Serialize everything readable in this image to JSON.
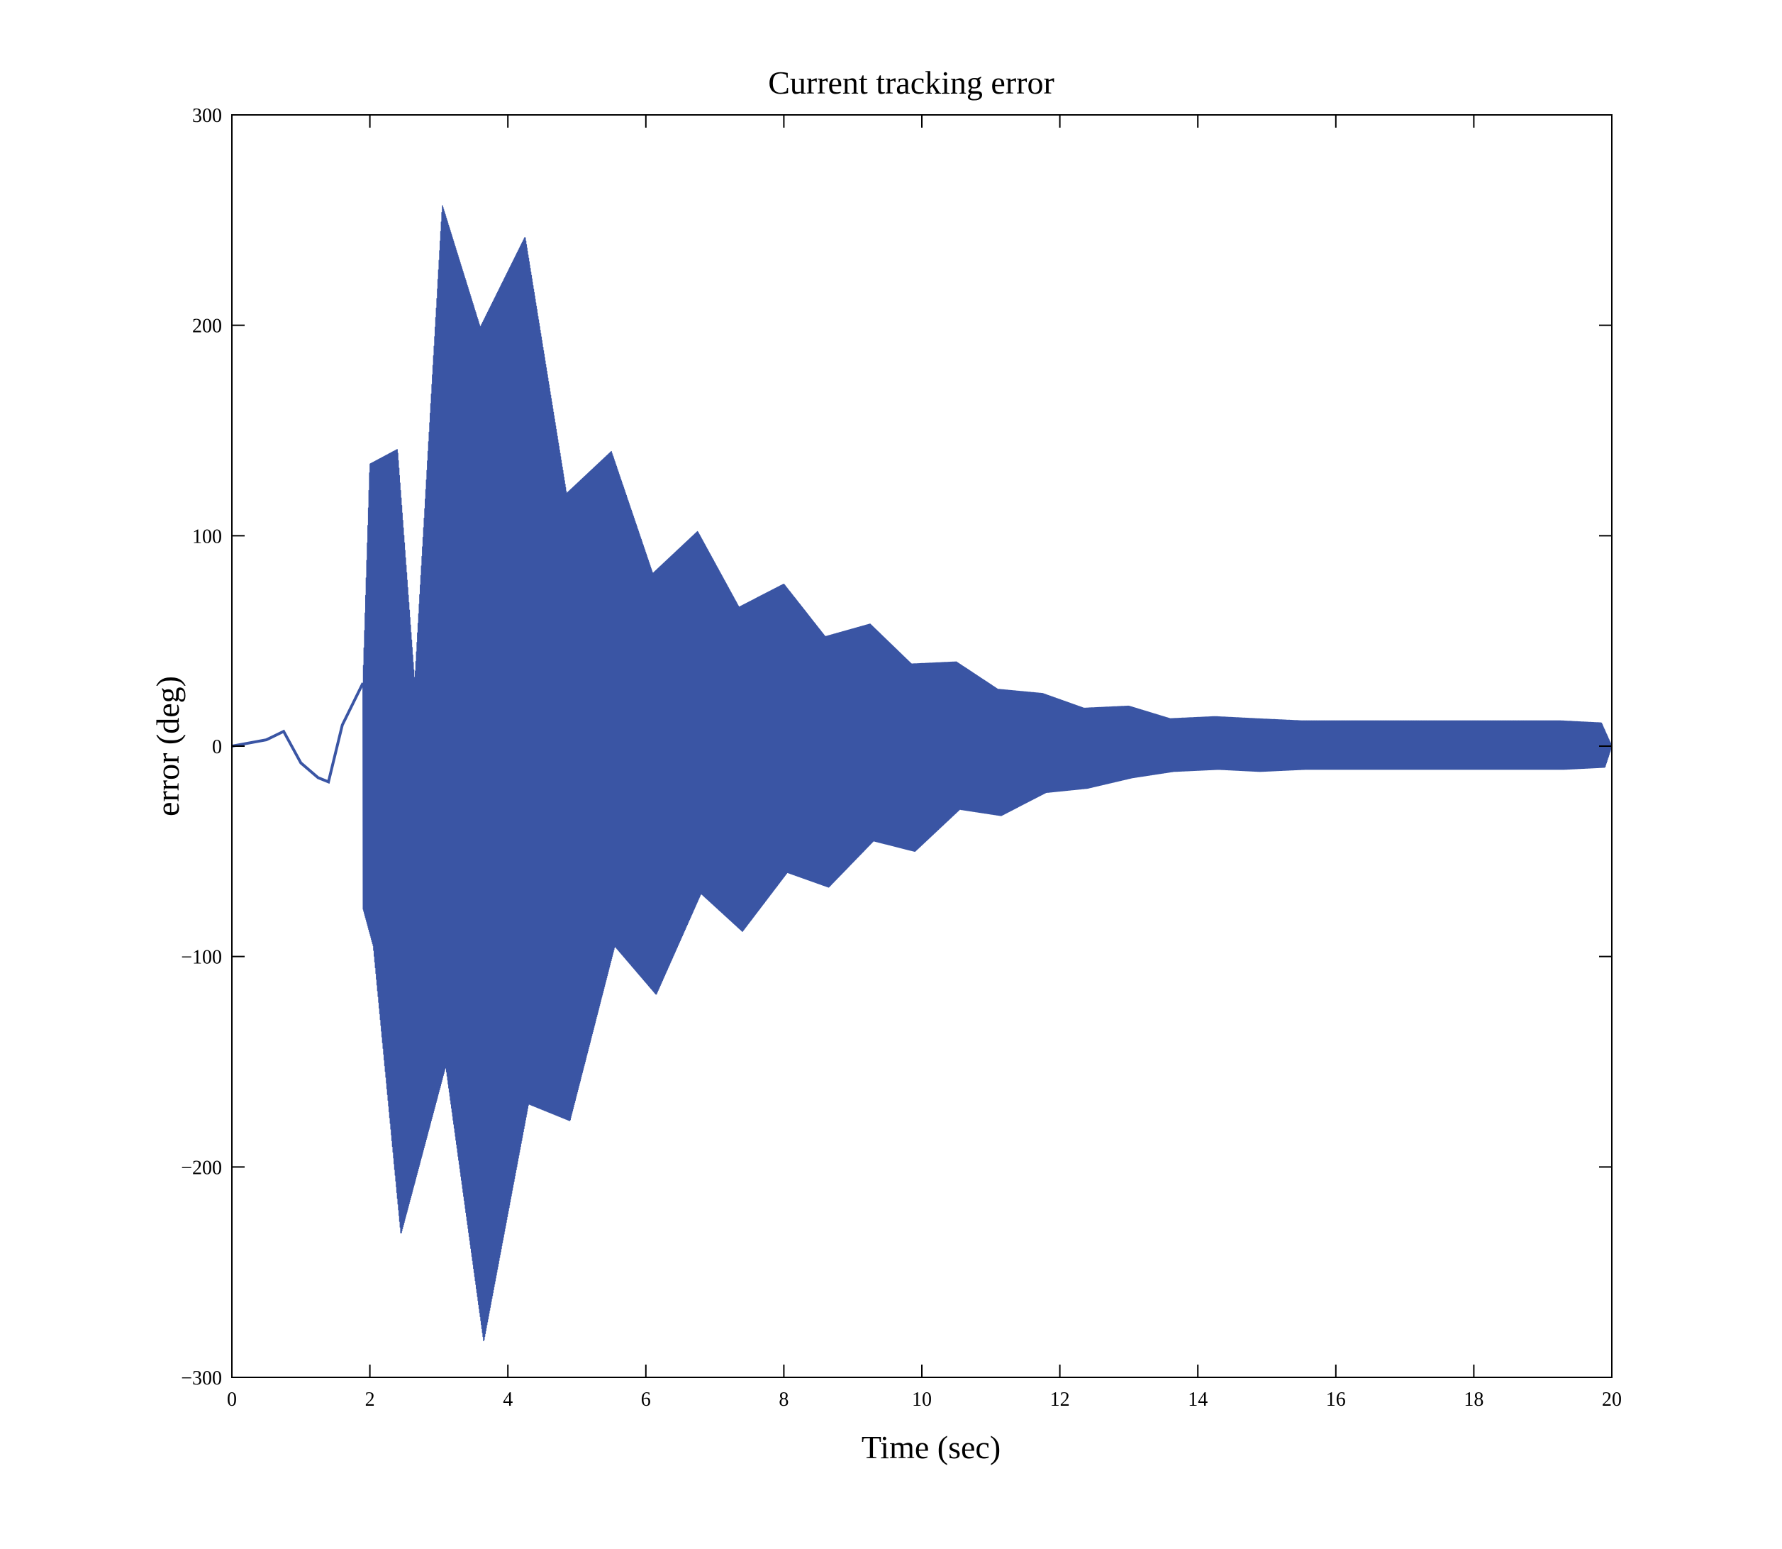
{
  "chart_data": {
    "type": "line",
    "title": "Current tracking error",
    "xlabel": "Time (sec)",
    "ylabel": "error (deg)",
    "xlim": [
      0,
      20
    ],
    "ylim": [
      -300,
      300
    ],
    "xticks": [
      0,
      2,
      4,
      6,
      8,
      10,
      12,
      14,
      16,
      18,
      20
    ],
    "yticks": [
      -300,
      -200,
      -100,
      0,
      100,
      200,
      300
    ],
    "xtick_labels": [
      "0",
      "2",
      "4",
      "6",
      "8",
      "10",
      "12",
      "14",
      "16",
      "18",
      "20"
    ],
    "ytick_labels": [
      "−300",
      "−200",
      "−100",
      "0",
      "100",
      "200",
      "300"
    ],
    "grid": false,
    "legend": null,
    "line_color": "#3a55a4",
    "series": [
      {
        "description": "oscillating error signal; envelope extrema of each burst",
        "x": [
          0,
          0.5,
          0.75,
          1.0,
          1.25,
          1.4,
          1.6,
          1.9,
          2.0,
          2.05,
          2.4,
          2.45,
          2.65,
          3.05,
          3.1,
          3.6,
          3.65,
          4.25,
          4.3,
          4.85,
          4.9,
          5.5,
          5.55,
          6.1,
          6.15,
          6.75,
          6.8,
          7.35,
          7.4,
          8.0,
          8.05,
          8.6,
          8.65,
          9.25,
          9.3,
          9.85,
          9.9,
          10.5,
          10.55,
          11.1,
          11.15,
          11.75,
          11.8,
          12.35,
          12.4,
          13.0,
          13.05,
          13.6,
          13.65,
          14.25,
          14.3,
          14.85,
          14.9,
          15.5,
          15.55,
          16.1,
          16.15,
          16.75,
          16.8,
          17.35,
          17.4,
          18.0,
          18.05,
          18.6,
          18.65,
          19.25,
          19.3,
          19.85,
          19.9,
          20.0
        ],
        "y": [
          0,
          3,
          7,
          -8,
          -15,
          -17,
          10,
          30,
          134,
          -95,
          141,
          -232,
          30,
          257,
          -152,
          199,
          -283,
          242,
          -170,
          120,
          -178,
          140,
          -95,
          82,
          -118,
          102,
          -70,
          66,
          -88,
          77,
          -60,
          52,
          -67,
          58,
          -45,
          39,
          -50,
          40,
          -30,
          27,
          -33,
          25,
          -22,
          18,
          -20,
          19,
          -15,
          13,
          -12,
          14,
          -11,
          13,
          -12,
          12,
          -11,
          12,
          -11,
          12,
          -11,
          12,
          -11,
          12,
          -11,
          12,
          -11,
          12,
          -11,
          11,
          -10,
          0
        ]
      }
    ]
  }
}
